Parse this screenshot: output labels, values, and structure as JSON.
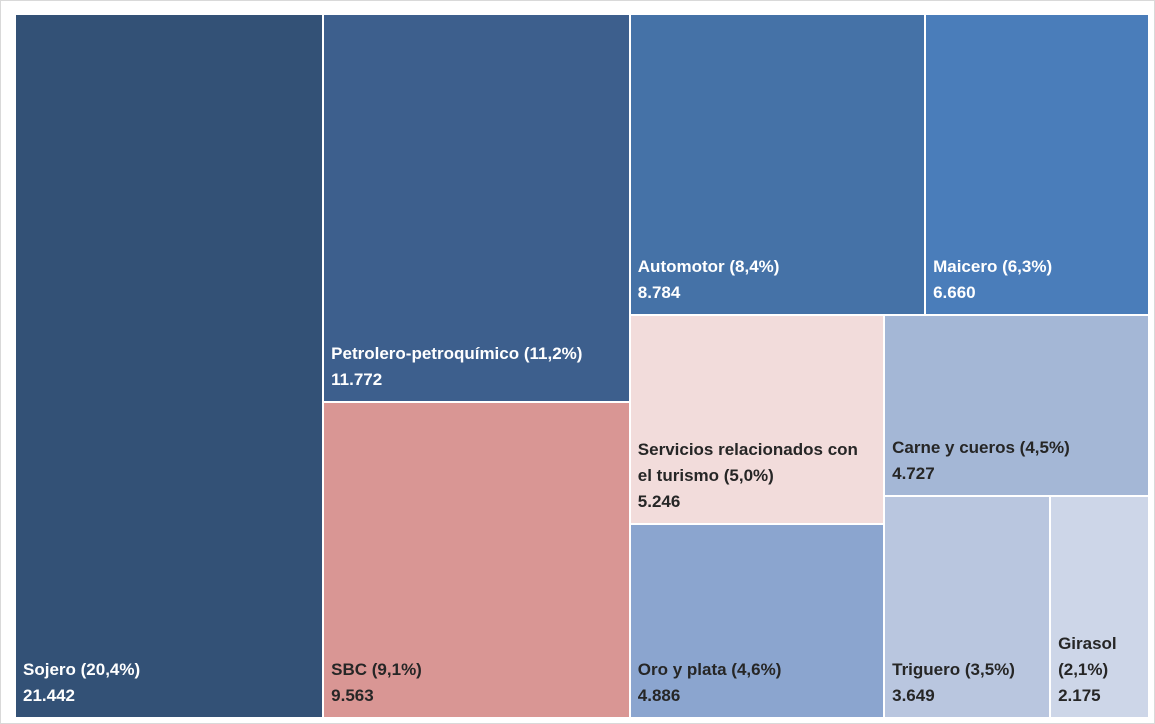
{
  "chart_data": {
    "type": "treemap",
    "categories": [
      "Sojero (20,4%)",
      "Petrolero-petroquímico (11,2%)",
      "SBC (9,1%)",
      "Automotor (8,4%)",
      "Maicero (6,3%)",
      "Servicios relacionados con el turismo (5,0%)",
      "Carne y cueros (4,5%)",
      "Oro y plata (4,6%)",
      "Triguero (3,5%)",
      "Girasol (2,1%)"
    ],
    "values": [
      21442,
      11772,
      9563,
      8784,
      6660,
      5246,
      4727,
      4886,
      3649,
      2175
    ],
    "value_labels": [
      "21.442",
      "11.772",
      "9.563",
      "8.784",
      "6.660",
      "5.246",
      "4.727",
      "4.886",
      "3.649",
      "2.175"
    ],
    "colors": [
      "#335176",
      "#3d5f8d",
      "#d99694",
      "#4572a7",
      "#4a7dba",
      "#f2dcdb",
      "#a4b7d6",
      "#8ba5cf",
      "#b9c6df",
      "#cdd6e8"
    ]
  }
}
